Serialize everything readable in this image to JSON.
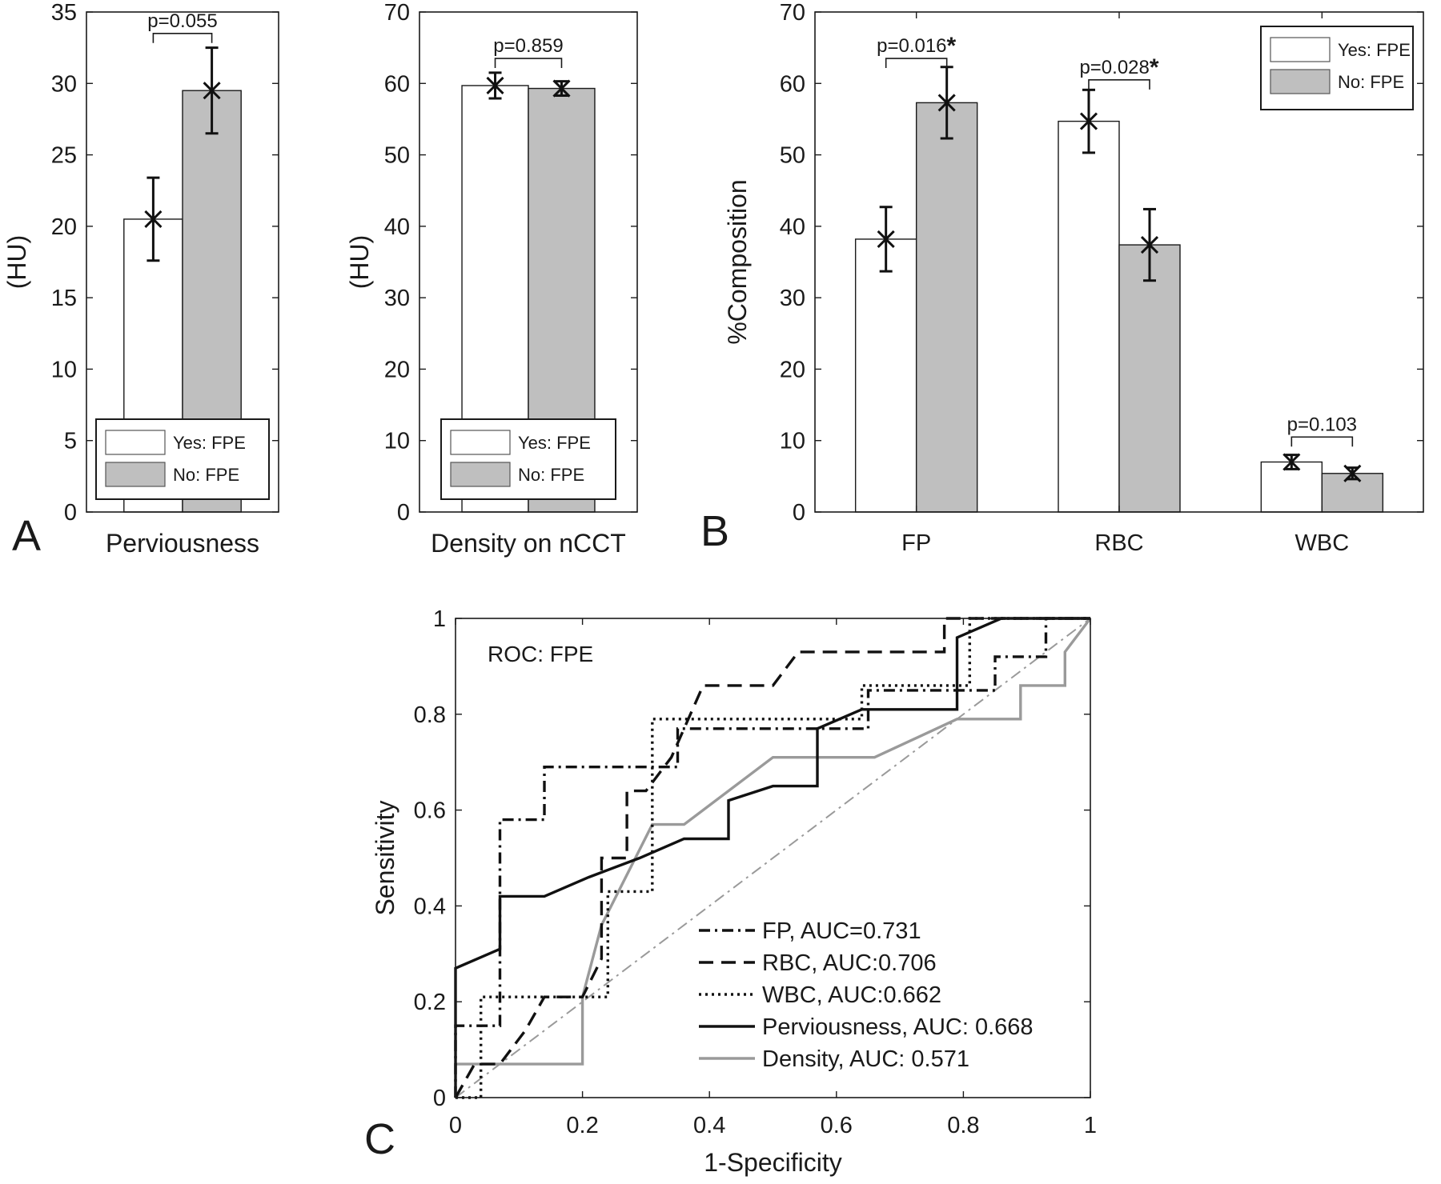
{
  "panel_letters": [
    "A",
    "B",
    "C"
  ],
  "chart_data": [
    {
      "id": "perviousness",
      "type": "bar",
      "xlabel": "Perviousness",
      "ylabel": "(HU)",
      "ylim": [
        0,
        35
      ],
      "yticks": [
        0,
        5,
        10,
        15,
        20,
        25,
        30,
        35
      ],
      "series": [
        {
          "name": "Yes: FPE",
          "color": "#ffffff",
          "values": [
            20.5
          ],
          "err": [
            2.9
          ]
        },
        {
          "name": "No: FPE",
          "color": "#bfbfbf",
          "values": [
            29.5
          ],
          "err": [
            3.0
          ]
        }
      ],
      "categories": [
        ""
      ],
      "pvalues": [
        {
          "label": "p=0.055",
          "star": "",
          "level": 33.5
        }
      ],
      "legend": "bottom"
    },
    {
      "id": "density",
      "type": "bar",
      "xlabel": "Density on nCCT",
      "ylabel": "(HU)",
      "ylim": [
        0,
        70
      ],
      "yticks": [
        0,
        10,
        20,
        30,
        40,
        50,
        60,
        70
      ],
      "series": [
        {
          "name": "Yes: FPE",
          "color": "#ffffff",
          "values": [
            59.7
          ],
          "err": [
            1.8
          ]
        },
        {
          "name": "No: FPE",
          "color": "#bfbfbf",
          "values": [
            59.3
          ],
          "err": [
            1.0
          ]
        }
      ],
      "categories": [
        ""
      ],
      "pvalues": [
        {
          "label": "p=0.859",
          "star": "",
          "level": 63.5
        }
      ],
      "legend": "bottom"
    },
    {
      "id": "composition",
      "type": "bar",
      "xlabel": "",
      "ylabel": "%Composition",
      "ylim": [
        0,
        70
      ],
      "yticks": [
        0,
        10,
        20,
        30,
        40,
        50,
        60,
        70
      ],
      "categories": [
        "FP",
        "RBC",
        "WBC"
      ],
      "series": [
        {
          "name": "Yes: FPE",
          "color": "#ffffff",
          "values": [
            38.2,
            54.7,
            7.0
          ],
          "err": [
            4.5,
            4.4,
            1.0
          ]
        },
        {
          "name": "No: FPE",
          "color": "#bfbfbf",
          "values": [
            57.3,
            37.4,
            5.4
          ],
          "err": [
            5.0,
            5.0,
            0.8
          ]
        }
      ],
      "pvalues": [
        {
          "label": "p=0.016",
          "star": "*",
          "level": 63.5
        },
        {
          "label": "p=0.028",
          "star": "*",
          "level": 60.5
        },
        {
          "label": "p=0.103",
          "star": "",
          "level": 10.5
        }
      ],
      "legend": "top-right"
    },
    {
      "id": "roc",
      "type": "line",
      "title": "ROC: FPE",
      "xlabel": "1-Specificity",
      "ylabel": "Sensitivity",
      "xlim": [
        0,
        1
      ],
      "ylim": [
        0,
        1
      ],
      "xticks": [
        0,
        0.2,
        0.4,
        0.6,
        0.8,
        1
      ],
      "yticks": [
        0,
        0.2,
        0.4,
        0.6,
        0.8,
        1
      ],
      "xticklabels": [
        "0",
        "0.2",
        "0.4",
        "0.6",
        "0.8",
        "1"
      ],
      "yticklabels": [
        "0",
        "0.2",
        "0.4",
        "0.6",
        "0.8",
        "1"
      ],
      "reference_line": {
        "x": [
          0,
          1
        ],
        "y": [
          0,
          1
        ],
        "color": "#9a9a9a",
        "style": "dashdot"
      },
      "legend": "bottom-right",
      "series": [
        {
          "name": "FP, AUC=0.731",
          "color": "#111111",
          "style": "dashdot",
          "x": [
            0,
            0,
            0.07,
            0.07,
            0.14,
            0.14,
            0.35,
            0.35,
            0.65,
            0.65,
            0.85,
            0.85,
            0.93,
            0.93,
            1
          ],
          "y": [
            0,
            0.15,
            0.15,
            0.58,
            0.58,
            0.69,
            0.69,
            0.77,
            0.77,
            0.85,
            0.85,
            0.92,
            0.92,
            1,
            1
          ]
        },
        {
          "name": "RBC, AUC:0.706",
          "color": "#111111",
          "style": "dashed",
          "x": [
            0,
            0.03,
            0.07,
            0.11,
            0.14,
            0.2,
            0.23,
            0.23,
            0.27,
            0.27,
            0.3,
            0.34,
            0.39,
            0.5,
            0.54,
            0.77,
            0.77,
            0.83,
            1
          ],
          "y": [
            0,
            0.07,
            0.07,
            0.14,
            0.21,
            0.21,
            0.29,
            0.5,
            0.5,
            0.64,
            0.64,
            0.71,
            0.86,
            0.86,
            0.93,
            0.93,
            1,
            1,
            1
          ]
        },
        {
          "name": "WBC, AUC:0.662",
          "color": "#111111",
          "style": "dotted",
          "x": [
            0,
            0.04,
            0.04,
            0.24,
            0.24,
            0.31,
            0.31,
            0.64,
            0.64,
            0.81,
            0.81,
            1
          ],
          "y": [
            0,
            0,
            0.21,
            0.21,
            0.43,
            0.43,
            0.79,
            0.79,
            0.86,
            0.86,
            1,
            1
          ]
        },
        {
          "name": "Perviousness, AUC: 0.668",
          "color": "#111111",
          "style": "solid",
          "x": [
            0,
            0,
            0.07,
            0.07,
            0.14,
            0.21,
            0.29,
            0.36,
            0.43,
            0.43,
            0.5,
            0.57,
            0.57,
            0.64,
            0.79,
            0.79,
            0.86,
            1
          ],
          "y": [
            0,
            0.27,
            0.31,
            0.42,
            0.42,
            0.46,
            0.5,
            0.54,
            0.54,
            0.62,
            0.65,
            0.65,
            0.77,
            0.81,
            0.81,
            0.96,
            1,
            1
          ]
        },
        {
          "name": "Density, AUC: 0.571",
          "color": "#9a9a9a",
          "style": "solid",
          "x": [
            0,
            0.2,
            0.2,
            0.23,
            0.31,
            0.36,
            0.5,
            0.66,
            0.79,
            0.89,
            0.89,
            0.96,
            0.96,
            1
          ],
          "y": [
            0.07,
            0.07,
            0.21,
            0.36,
            0.57,
            0.57,
            0.71,
            0.71,
            0.79,
            0.79,
            0.86,
            0.86,
            0.93,
            1
          ]
        }
      ]
    }
  ]
}
